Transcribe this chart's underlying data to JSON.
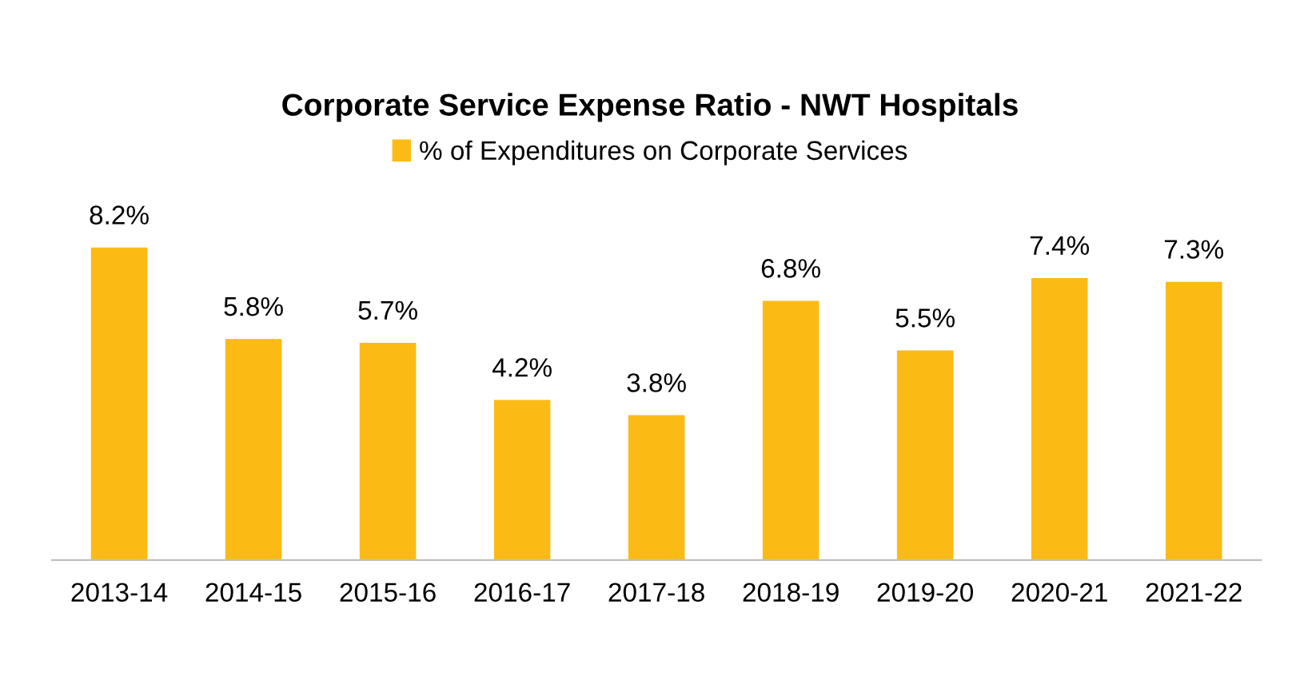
{
  "chart_data": {
    "type": "bar",
    "title": "Corporate Service Expense Ratio - NWT Hospitals",
    "categories": [
      "2013-14",
      "2014-15",
      "2015-16",
      "2016-17",
      "2017-18",
      "2018-19",
      "2019-20",
      "2020-21",
      "2021-22"
    ],
    "series": [
      {
        "name": "% of Expenditures on Corporate Services",
        "color": "#fbbb14",
        "values": [
          8.2,
          5.8,
          5.7,
          4.2,
          3.8,
          6.8,
          5.5,
          7.4,
          7.3
        ],
        "value_labels": [
          "8.2%",
          "5.8%",
          "5.7%",
          "4.2%",
          "3.8%",
          "6.8%",
          "5.5%",
          "7.4%",
          "7.3%"
        ]
      }
    ],
    "legend": "top",
    "grid": false
  }
}
